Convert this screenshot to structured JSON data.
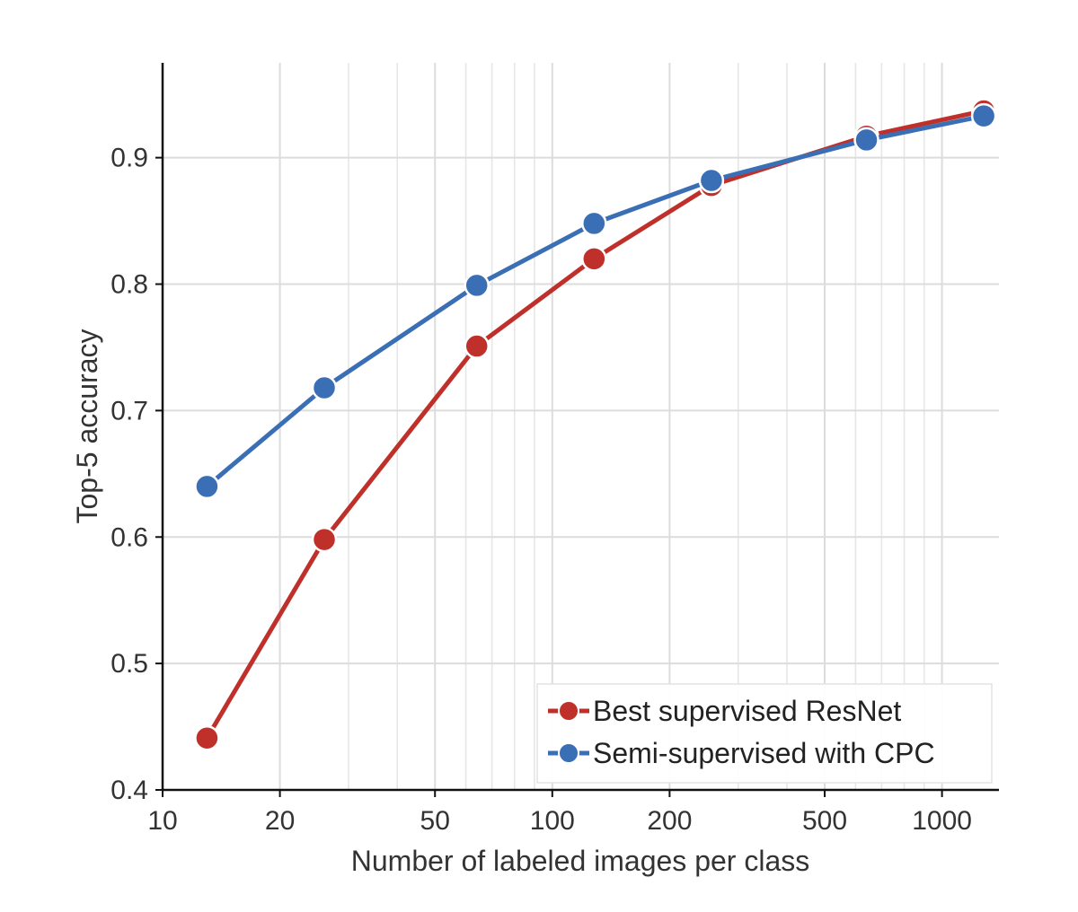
{
  "chart_data": {
    "type": "line",
    "xlabel": "Number of labeled images per class",
    "ylabel": "Top-5 accuracy",
    "x_scale": "log",
    "xlim": [
      10,
      1400
    ],
    "ylim": [
      0.4,
      0.975
    ],
    "xticks": [
      10,
      20,
      50,
      100,
      200,
      500,
      1000
    ],
    "xtick_labels": [
      "10",
      "20",
      "50",
      "100",
      "200",
      "500",
      "1000"
    ],
    "yticks": [
      0.4,
      0.5,
      0.6,
      0.7,
      0.8,
      0.9
    ],
    "ytick_labels": [
      "0.4",
      "0.5",
      "0.6",
      "0.7",
      "0.8",
      "0.9"
    ],
    "grid": true,
    "legend_position": "bottom-right",
    "x": [
      13,
      26,
      64,
      128,
      256,
      640,
      1280
    ],
    "series": [
      {
        "name": "Best supervised ResNet",
        "color": "#c0302b",
        "values": [
          0.441,
          0.598,
          0.751,
          0.82,
          0.878,
          0.917,
          0.937
        ]
      },
      {
        "name": "Semi-supervised with CPC",
        "color": "#3a6eb5",
        "values": [
          0.64,
          0.718,
          0.799,
          0.848,
          0.882,
          0.914,
          0.933
        ]
      }
    ]
  }
}
